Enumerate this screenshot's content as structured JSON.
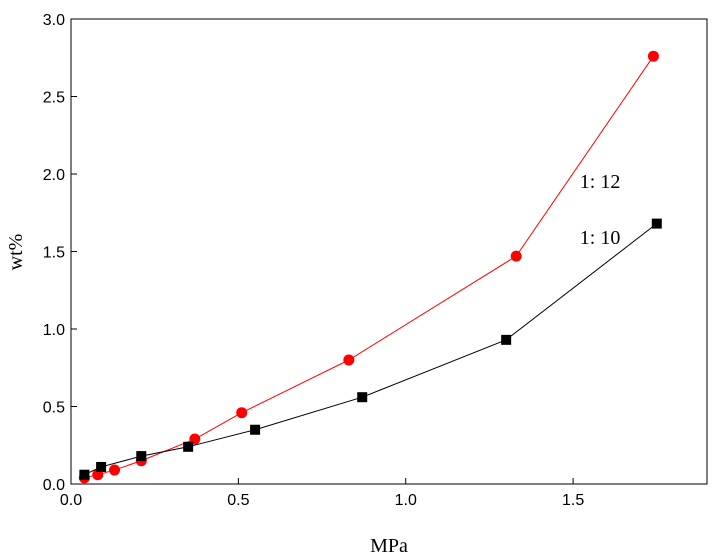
{
  "chart_data": {
    "type": "line",
    "xlabel": "MPa",
    "ylabel": "wt%",
    "xlim": [
      0,
      1.9
    ],
    "ylim": [
      0,
      3.0
    ],
    "xticks": [
      "0.0",
      "0.5",
      "1.0",
      "1.5"
    ],
    "yticks": [
      "0.0",
      "0.5",
      "1.0",
      "1.5",
      "2.0",
      "2.5",
      "3.0"
    ],
    "xtick_values": [
      0,
      0.5,
      1.0,
      1.5
    ],
    "ytick_values": [
      0,
      0.5,
      1.0,
      1.5,
      2.0,
      2.5,
      3.0
    ],
    "grid": false,
    "legend": "none",
    "series": [
      {
        "name": "1:  12",
        "color": "#ff0000",
        "marker": "circle",
        "x": [
          0.04,
          0.08,
          0.13,
          0.21,
          0.37,
          0.51,
          0.83,
          1.33,
          1.74
        ],
        "y": [
          0.04,
          0.06,
          0.09,
          0.15,
          0.29,
          0.46,
          0.8,
          1.47,
          2.76
        ]
      },
      {
        "name": "1:  10",
        "color": "#000000",
        "marker": "square",
        "x": [
          0.04,
          0.09,
          0.21,
          0.35,
          0.55,
          0.87,
          1.3,
          1.75
        ],
        "y": [
          0.06,
          0.11,
          0.18,
          0.24,
          0.35,
          0.56,
          0.93,
          1.68
        ]
      }
    ],
    "annotations": [
      {
        "text": "1:  12",
        "x": 1.52,
        "y": 1.91,
        "series": 0
      },
      {
        "text": "1:  10",
        "x": 1.52,
        "y": 1.55,
        "series": 1
      }
    ]
  }
}
